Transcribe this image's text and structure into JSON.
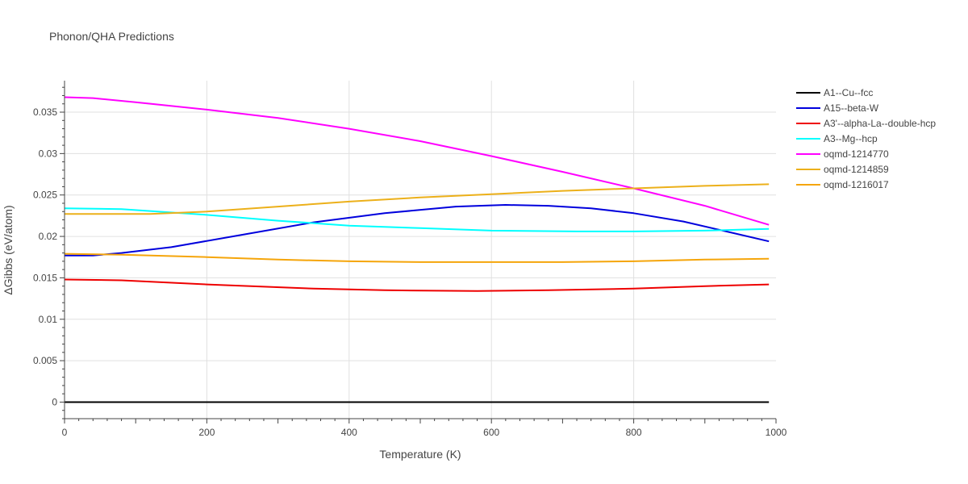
{
  "chart_data": {
    "type": "line",
    "title": "Phonon/QHA Predictions",
    "xlabel": "Temperature (K)",
    "ylabel": "ΔGibbs (eV/atom)",
    "xlim": [
      0,
      1000
    ],
    "ylim": [
      -0.002,
      0.0388
    ],
    "x_ticks": [
      0,
      200,
      400,
      600,
      800,
      1000
    ],
    "y_ticks": [
      0,
      0.005,
      0.01,
      0.015,
      0.02,
      0.025,
      0.03,
      0.035
    ],
    "grid": true,
    "legend_position": "top-right",
    "series": [
      {
        "name": "A1--Cu--fcc",
        "color": "#000000",
        "x": [
          0,
          990
        ],
        "y": [
          0,
          0
        ]
      },
      {
        "name": "A15--beta-W",
        "color": "#0000dd",
        "x": [
          0,
          40,
          80,
          150,
          250,
          350,
          450,
          550,
          620,
          680,
          740,
          800,
          870,
          930,
          990
        ],
        "y": [
          0.0177,
          0.0177,
          0.018,
          0.0187,
          0.0202,
          0.0217,
          0.0228,
          0.0236,
          0.0238,
          0.0237,
          0.0234,
          0.0228,
          0.0218,
          0.0206,
          0.0194
        ]
      },
      {
        "name": "A3'--alpha-La--double-hcp",
        "color": "#ee0000",
        "x": [
          0,
          80,
          200,
          350,
          450,
          580,
          680,
          800,
          900,
          990
        ],
        "y": [
          0.0148,
          0.0147,
          0.0142,
          0.0137,
          0.0135,
          0.0134,
          0.0135,
          0.0137,
          0.014,
          0.0142
        ]
      },
      {
        "name": "A3--Mg--hcp",
        "color": "#00ffff",
        "x": [
          0,
          80,
          200,
          300,
          400,
          500,
          600,
          720,
          800,
          900,
          990
        ],
        "y": [
          0.0234,
          0.0233,
          0.0226,
          0.0219,
          0.0213,
          0.021,
          0.0207,
          0.0206,
          0.0206,
          0.0207,
          0.0209
        ]
      },
      {
        "name": "oqmd-1214770",
        "color": "#ff00ff",
        "x": [
          0,
          40,
          100,
          200,
          300,
          400,
          500,
          600,
          700,
          800,
          900,
          990
        ],
        "y": [
          0.0368,
          0.0367,
          0.0362,
          0.0353,
          0.0343,
          0.033,
          0.0315,
          0.0297,
          0.0278,
          0.0258,
          0.0237,
          0.0214
        ]
      },
      {
        "name": "oqmd-1214859",
        "color": "#ecb01a",
        "x": [
          0,
          120,
          200,
          300,
          400,
          500,
          600,
          700,
          800,
          900,
          990
        ],
        "y": [
          0.0227,
          0.0227,
          0.023,
          0.0236,
          0.0242,
          0.0247,
          0.0251,
          0.0255,
          0.0258,
          0.0261,
          0.0263
        ]
      },
      {
        "name": "oqmd-1216017",
        "color": "#f5a50a",
        "x": [
          0,
          80,
          200,
          300,
          400,
          500,
          600,
          700,
          800,
          900,
          990
        ],
        "y": [
          0.0179,
          0.0178,
          0.0175,
          0.0172,
          0.017,
          0.0169,
          0.0169,
          0.0169,
          0.017,
          0.0172,
          0.0173
        ]
      }
    ]
  }
}
